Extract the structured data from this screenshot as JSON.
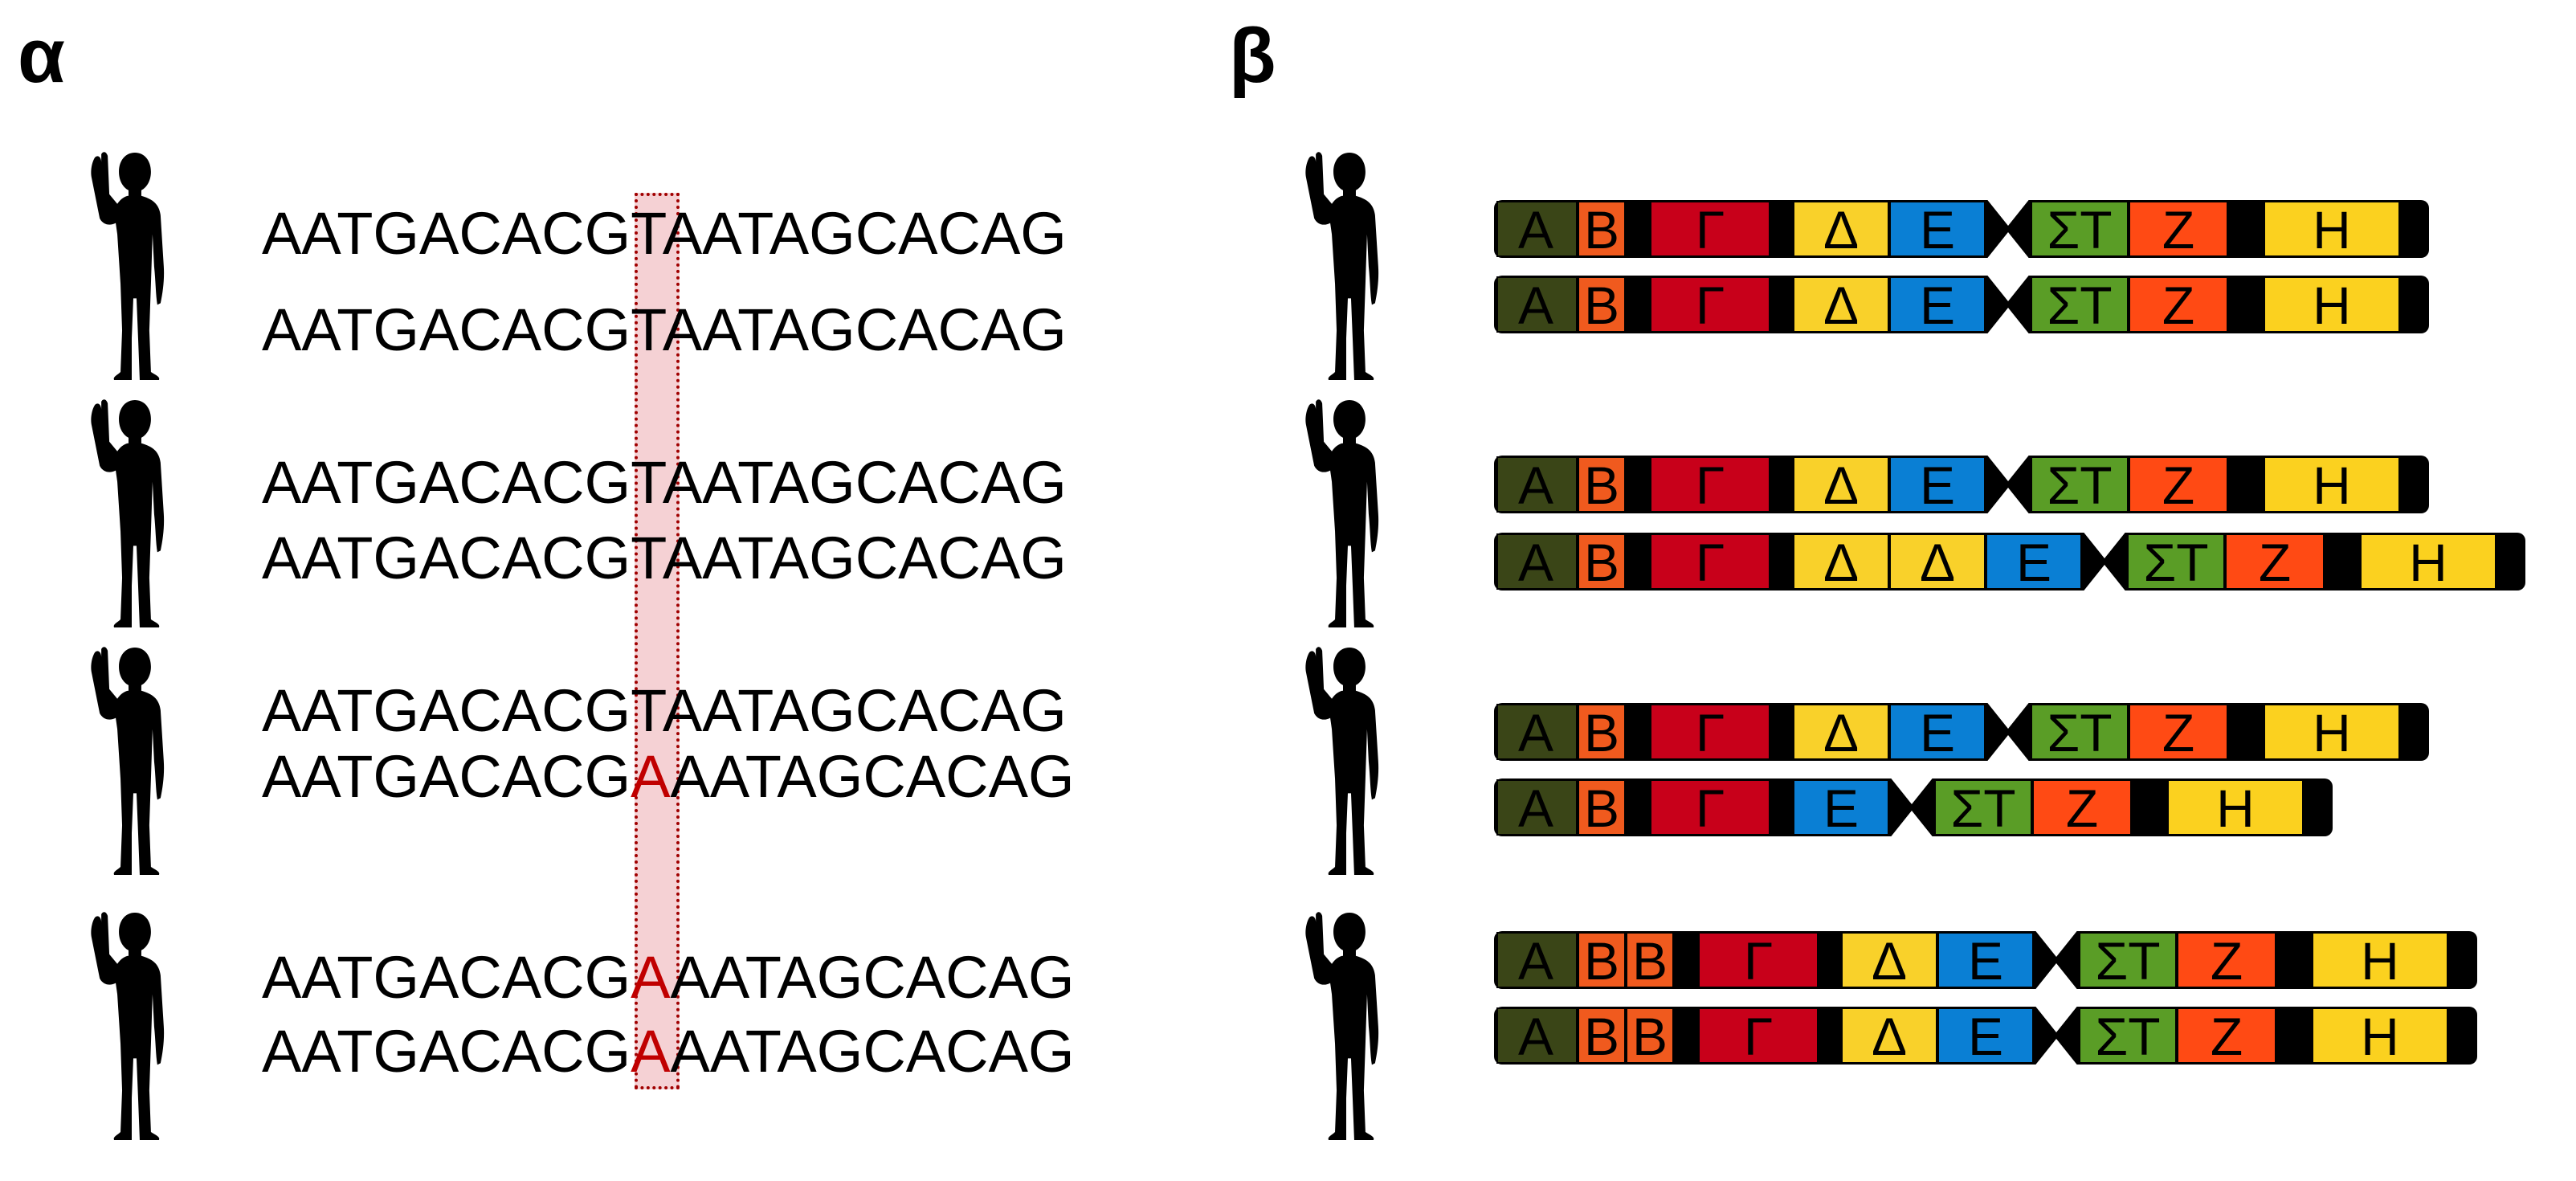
{
  "panels": {
    "alpha": "α",
    "beta": "β"
  },
  "alpha_rows": [
    {
      "prefix": "AATGACACG",
      "snp": "T",
      "suffix": "AATAGCACAG",
      "mutant": false
    },
    {
      "prefix": "AATGACACG",
      "snp": "T",
      "suffix": "AATAGCACAG",
      "mutant": false
    },
    {
      "prefix": "AATGACACG",
      "snp": "T",
      "suffix": "AATAGCACAG",
      "mutant": false
    },
    {
      "prefix": "AATGACACG",
      "snp": "T",
      "suffix": "AATAGCACAG",
      "mutant": false
    },
    {
      "prefix": "AATGACACG",
      "snp": "T",
      "suffix": "AATAGCACAG",
      "mutant": false
    },
    {
      "prefix": "AATGACACG",
      "snp": "A",
      "suffix": "AATAGCACAG",
      "mutant": true
    },
    {
      "prefix": "AATGACACG",
      "snp": "A",
      "suffix": "AATAGCACAG",
      "mutant": true
    },
    {
      "prefix": "AATGACACG",
      "snp": "A",
      "suffix": "AATAGCACAG",
      "mutant": true
    }
  ],
  "colors": {
    "A": "#3a4517",
    "B": "#f05a1e",
    "Γ": "#c8001a",
    "Δ": "#f9d12a",
    "Ε": "#0a7fd4",
    "ΣΤ": "#5a9d26",
    "Ζ": "#ff4a14",
    "Η": "#fbd11f",
    "spacer": "#000000",
    "mutation": "#c00000",
    "snp_box": "#a00000"
  },
  "chromosomes": [
    [
      "A",
      "B",
      "Γ",
      "Δ",
      "Ε",
      "|",
      "ΣΤ",
      "Ζ",
      "Η"
    ],
    [
      "A",
      "B",
      "Γ",
      "Δ",
      "Ε",
      "|",
      "ΣΤ",
      "Ζ",
      "Η"
    ],
    [
      "A",
      "B",
      "Γ",
      "Δ",
      "Ε",
      "|",
      "ΣΤ",
      "Ζ",
      "Η"
    ],
    [
      "A",
      "B",
      "Γ",
      "Δ",
      "Δ",
      "Ε",
      "|",
      "ΣΤ",
      "Ζ",
      "Η"
    ],
    [
      "A",
      "B",
      "Γ",
      "Δ",
      "Ε",
      "|",
      "ΣΤ",
      "Ζ",
      "Η"
    ],
    [
      "A",
      "B",
      "Γ",
      "Ε",
      "|",
      "ΣΤ",
      "Ζ",
      "Η"
    ],
    [
      "A",
      "B",
      "B",
      "Γ",
      "Δ",
      "Ε",
      "|",
      "ΣΤ",
      "Ζ",
      "Η"
    ],
    [
      "A",
      "B",
      "B",
      "Γ",
      "Δ",
      "Ε",
      "|",
      "ΣΤ",
      "Ζ",
      "Η"
    ]
  ]
}
